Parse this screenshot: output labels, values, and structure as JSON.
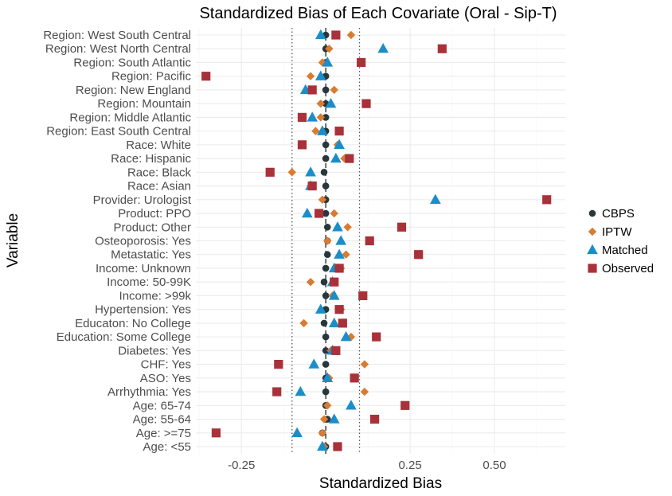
{
  "chart_data": {
    "type": "scatter",
    "title": "Standardized Bias of Each Covariate (Oral - Sip-T)",
    "xlabel": "Standardized Bias",
    "ylabel": "Variable",
    "xlim": [
      -0.385,
      0.71
    ],
    "x_ticks": [
      -0.25,
      0,
      0.25,
      0.5
    ],
    "x_tick_labels": [
      "-0.25",
      "",
      "0.25",
      "0.50"
    ],
    "reference_lines": [
      {
        "x": 0,
        "style": "dashed"
      },
      {
        "x": -0.1,
        "style": "dotted"
      },
      {
        "x": 0.1,
        "style": "dotted"
      }
    ],
    "grid": true,
    "legend_position": "right",
    "categories": [
      "Region: West South Central",
      "Region: West North Central",
      "Region: South Atlantic",
      "Region: Pacific",
      "Region: New England",
      "Region: Mountain",
      "Region: Middle Atlantic",
      "Region: East South Central",
      "Race: White",
      "Race: Hispanic",
      "Race: Black",
      "Race: Asian",
      "Provider: Urologist",
      "Product: PPO",
      "Product: Other",
      "Osteoporosis: Yes",
      "Metastatic: Yes",
      "Income: Unknown",
      "Income: 50-99K",
      "Income: >99k",
      "Hypertension: Yes",
      "Educaton: No College",
      "Education: Some College",
      "Diabetes: Yes",
      "CHF: Yes",
      "ASO: Yes",
      "Arrhythmia: Yes",
      "Age: 65-74",
      "Age: 55-64",
      "Age: >=75",
      "Age: <55"
    ],
    "series": [
      {
        "name": "CBPS",
        "shape": "circle",
        "color": "#28373b",
        "values": [
          0,
          0,
          0,
          0,
          0,
          0,
          0,
          0,
          0,
          0,
          -0.005,
          0,
          0,
          0,
          0.005,
          0.005,
          0.005,
          0,
          -0.005,
          0,
          0,
          -0.005,
          0,
          0,
          0,
          0,
          0,
          0,
          0.005,
          -0.01,
          0
        ]
      },
      {
        "name": "IPTW",
        "shape": "diamond",
        "color": "#d97b31",
        "values": [
          0.075,
          0.01,
          -0.01,
          -0.045,
          0.025,
          -0.015,
          -0.015,
          -0.03,
          0.035,
          0.055,
          -0.1,
          -0.045,
          -0.01,
          0.025,
          0.065,
          0.005,
          0.06,
          0.045,
          -0.045,
          0.02,
          0.045,
          -0.065,
          0.075,
          0.015,
          0.115,
          0.01,
          0.115,
          0.005,
          -0.005,
          -0.01,
          -0.005
        ]
      },
      {
        "name": "Matched",
        "shape": "triangle",
        "color": "#1b8ec9",
        "values": [
          -0.015,
          0.17,
          0.005,
          -0.015,
          -0.06,
          0.015,
          -0.04,
          -0.01,
          0.04,
          0.03,
          -0.045,
          -0.045,
          0.325,
          -0.055,
          0.035,
          0.045,
          0.04,
          0.025,
          0.02,
          0.025,
          -0.015,
          0.025,
          0.06,
          0.02,
          -0.035,
          0.005,
          -0.075,
          0.075,
          0.025,
          -0.085,
          -0.01
        ]
      },
      {
        "name": "Observed",
        "shape": "square",
        "color": "#a8313a",
        "values": [
          0.03,
          0.345,
          0.105,
          -0.355,
          -0.04,
          0.12,
          -0.07,
          0.04,
          -0.07,
          0.07,
          -0.165,
          -0.04,
          0.655,
          -0.02,
          0.225,
          0.13,
          0.275,
          0.04,
          0.025,
          0.11,
          0.04,
          0.05,
          0.15,
          0.03,
          -0.14,
          0.085,
          -0.145,
          0.235,
          0.145,
          -0.325,
          0.035
        ]
      }
    ]
  }
}
